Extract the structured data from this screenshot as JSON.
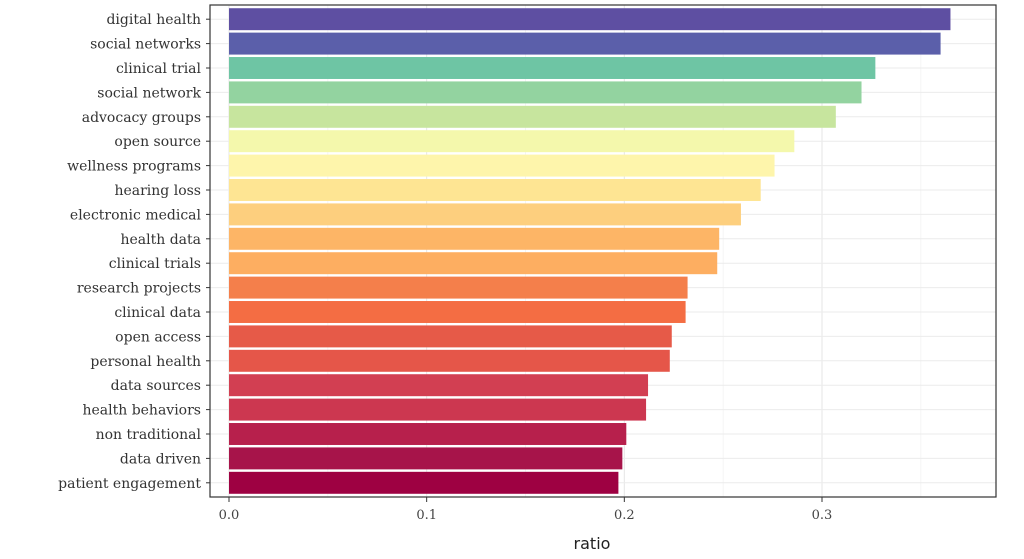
{
  "chart_data": {
    "type": "bar",
    "orientation": "horizontal",
    "categories": [
      "digital health",
      "social networks",
      "clinical trial",
      "social network",
      "advocacy groups",
      "open source",
      "wellness programs",
      "hearing loss",
      "electronic medical",
      "health data",
      "clinical trials",
      "research projects",
      "clinical data",
      "open access",
      "personal health",
      "data sources",
      "health behaviors",
      "non traditional",
      "data driven",
      "patient engagement"
    ],
    "values": [
      0.365,
      0.36,
      0.327,
      0.32,
      0.307,
      0.286,
      0.276,
      0.269,
      0.259,
      0.248,
      0.247,
      0.232,
      0.231,
      0.224,
      0.223,
      0.212,
      0.211,
      0.201,
      0.199,
      0.197
    ],
    "colors": [
      "#5E4FA2",
      "#5B5FAA",
      "#6EC5A4",
      "#93D3A0",
      "#C7E59E",
      "#F4F8AC",
      "#FEF5AB",
      "#FEE593",
      "#FDCF7E",
      "#FDB566",
      "#FDAE61",
      "#F47F4B",
      "#F46D43",
      "#E65A48",
      "#E55649",
      "#D23F52",
      "#CC3750",
      "#B7204C",
      "#A7144A",
      "#9E0142"
    ],
    "xlabel": "ratio",
    "ylabel": "",
    "xlim": [
      0,
      0.385
    ],
    "xticks": [
      0.0,
      0.1,
      0.2,
      0.3
    ],
    "xtick_labels": [
      "0.0",
      "0.1",
      "0.2",
      "0.3"
    ],
    "grid": true,
    "legend": "none"
  }
}
